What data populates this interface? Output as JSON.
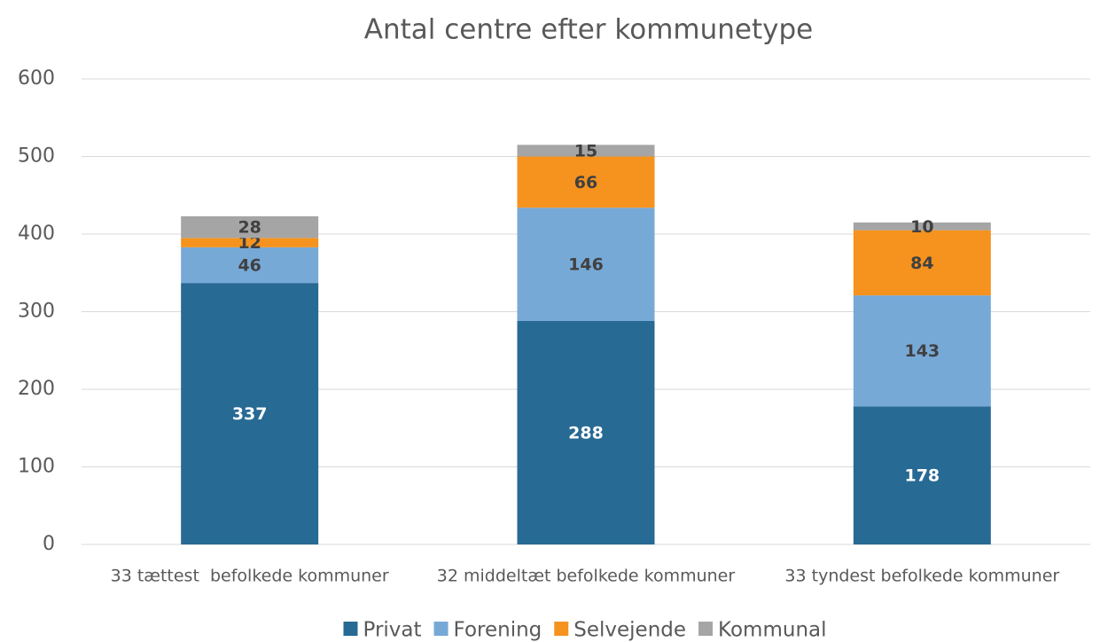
{
  "chart_data": {
    "type": "stacked_bar",
    "title": "Antal centre efter kommunetype",
    "categories": [
      "33 tættest  befolkede kommuner",
      "32 middeltæt befolkede kommuner",
      "33 tyndest befolkede kommuner"
    ],
    "series": [
      {
        "name": "Privat",
        "color": "#276a93",
        "label_color": "#ffffff",
        "values": [
          337,
          288,
          178
        ]
      },
      {
        "name": "Forening",
        "color": "#77a9d7",
        "label_color": "#404040",
        "values": [
          46,
          146,
          143
        ]
      },
      {
        "name": "Selvejende",
        "color": "#f5931e",
        "label_color": "#404040",
        "values": [
          12,
          66,
          84
        ]
      },
      {
        "name": "Kommunal",
        "color": "#a5a5a5",
        "label_color": "#404040",
        "values": [
          28,
          15,
          10
        ]
      }
    ],
    "ylim": [
      0,
      600
    ],
    "yticks": [
      0,
      100,
      200,
      300,
      400,
      500,
      600
    ],
    "grid": true,
    "legend": "bottom"
  }
}
